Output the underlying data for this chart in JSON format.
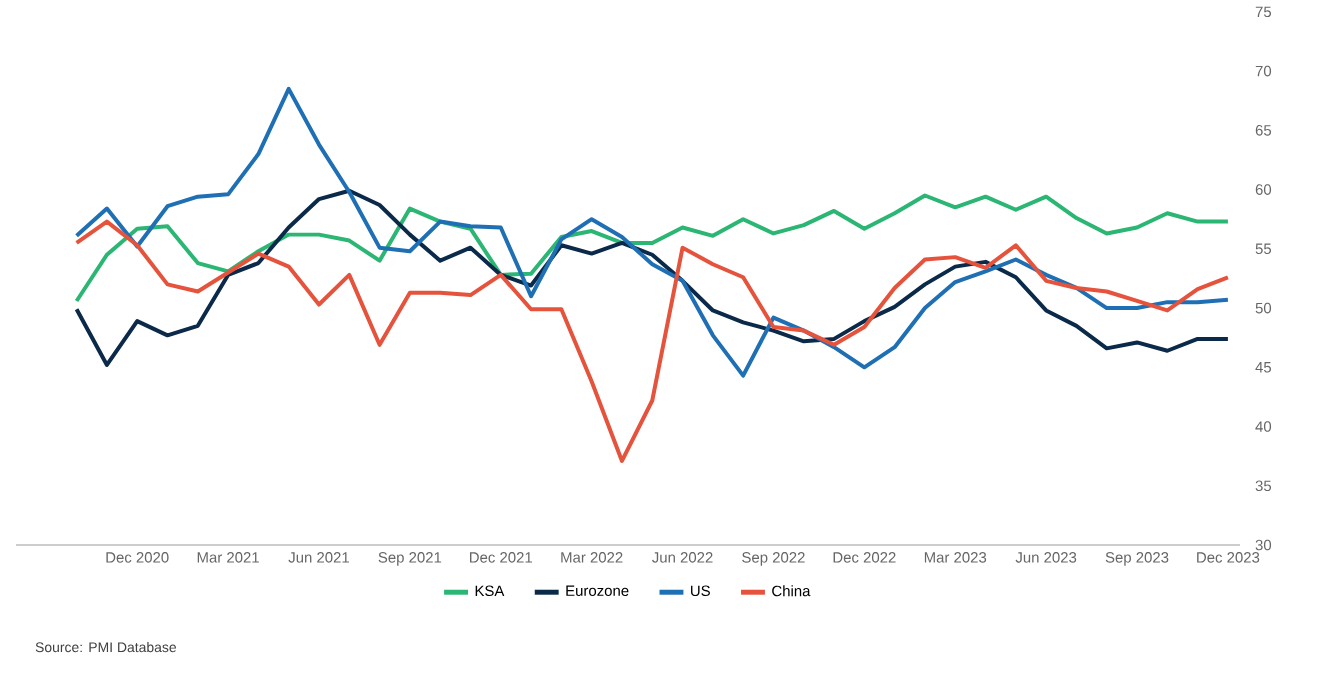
{
  "chart_data": {
    "type": "line",
    "categories": [
      null,
      null,
      "Dec 2020",
      null,
      null,
      "Mar 2021",
      null,
      null,
      "Jun 2021",
      null,
      null,
      "Sep 2021",
      null,
      null,
      "Dec 2021",
      null,
      null,
      "Mar 2022",
      null,
      null,
      "Jun 2022",
      null,
      null,
      "Sep 2022",
      null,
      null,
      "Dec 2022",
      null,
      null,
      "Mar 2023",
      null,
      null,
      "Jun 2023",
      null,
      null,
      "Sep 2023",
      null,
      null,
      "Dec 2023"
    ],
    "series": [
      {
        "name": "KSA",
        "color": "#2bb673",
        "values": [
          50.6,
          54.5,
          56.7,
          56.9,
          53.8,
          53.1,
          54.8,
          56.2,
          56.2,
          55.7,
          54.0,
          58.4,
          57.3,
          56.7,
          52.8,
          52.9,
          56.0,
          56.5,
          55.5,
          55.5,
          56.8,
          56.1,
          57.5,
          56.3,
          57.0,
          58.2,
          56.7,
          58.0,
          59.5,
          58.5,
          59.4,
          58.3,
          59.4,
          57.6,
          56.3,
          56.8,
          58.0,
          57.3,
          57.3
        ]
      },
      {
        "name": "Eurozone",
        "color": "#0b2a4a",
        "values": [
          49.9,
          45.2,
          48.9,
          47.7,
          48.5,
          52.8,
          53.8,
          56.8,
          59.2,
          59.9,
          58.7,
          56.2,
          54.0,
          55.1,
          52.8,
          51.9,
          55.3,
          54.6,
          55.5,
          54.5,
          52.3,
          49.8,
          48.8,
          48.1,
          47.2,
          47.4,
          48.9,
          50.1,
          52.0,
          53.5,
          53.9,
          52.6,
          49.8,
          48.5,
          46.6,
          47.1,
          46.4,
          47.4,
          47.4
        ]
      },
      {
        "name": "US",
        "color": "#1f6fb5",
        "values": [
          56.1,
          58.4,
          55.2,
          58.6,
          59.4,
          59.6,
          63.0,
          68.5,
          63.8,
          59.8,
          55.1,
          54.8,
          57.3,
          56.9,
          56.8,
          51.0,
          55.8,
          57.5,
          56.0,
          53.7,
          52.3,
          47.7,
          44.3,
          49.2,
          48.1,
          46.7,
          45.0,
          46.7,
          50.0,
          52.2,
          53.1,
          54.1,
          52.8,
          51.7,
          50.0,
          50.0,
          50.5,
          50.5,
          50.7
        ]
      },
      {
        "name": "China",
        "color": "#e5533d",
        "values": [
          55.5,
          57.3,
          55.3,
          52.0,
          51.4,
          53.0,
          54.6,
          53.5,
          50.3,
          52.8,
          46.9,
          51.3,
          51.3,
          51.1,
          52.8,
          49.9,
          49.9,
          43.8,
          37.1,
          42.2,
          55.1,
          53.7,
          52.6,
          48.4,
          48.1,
          46.9,
          48.4,
          51.7,
          54.1,
          54.3,
          53.4,
          55.3,
          52.3,
          51.7,
          51.4,
          50.6,
          49.8,
          51.6,
          52.6
        ]
      }
    ],
    "ylim": [
      30,
      75
    ],
    "yticks": [
      30,
      35,
      40,
      45,
      50,
      55,
      60,
      65,
      70,
      75
    ],
    "legend": "bottom",
    "annotations": [
      "Source: PMI Database"
    ]
  }
}
